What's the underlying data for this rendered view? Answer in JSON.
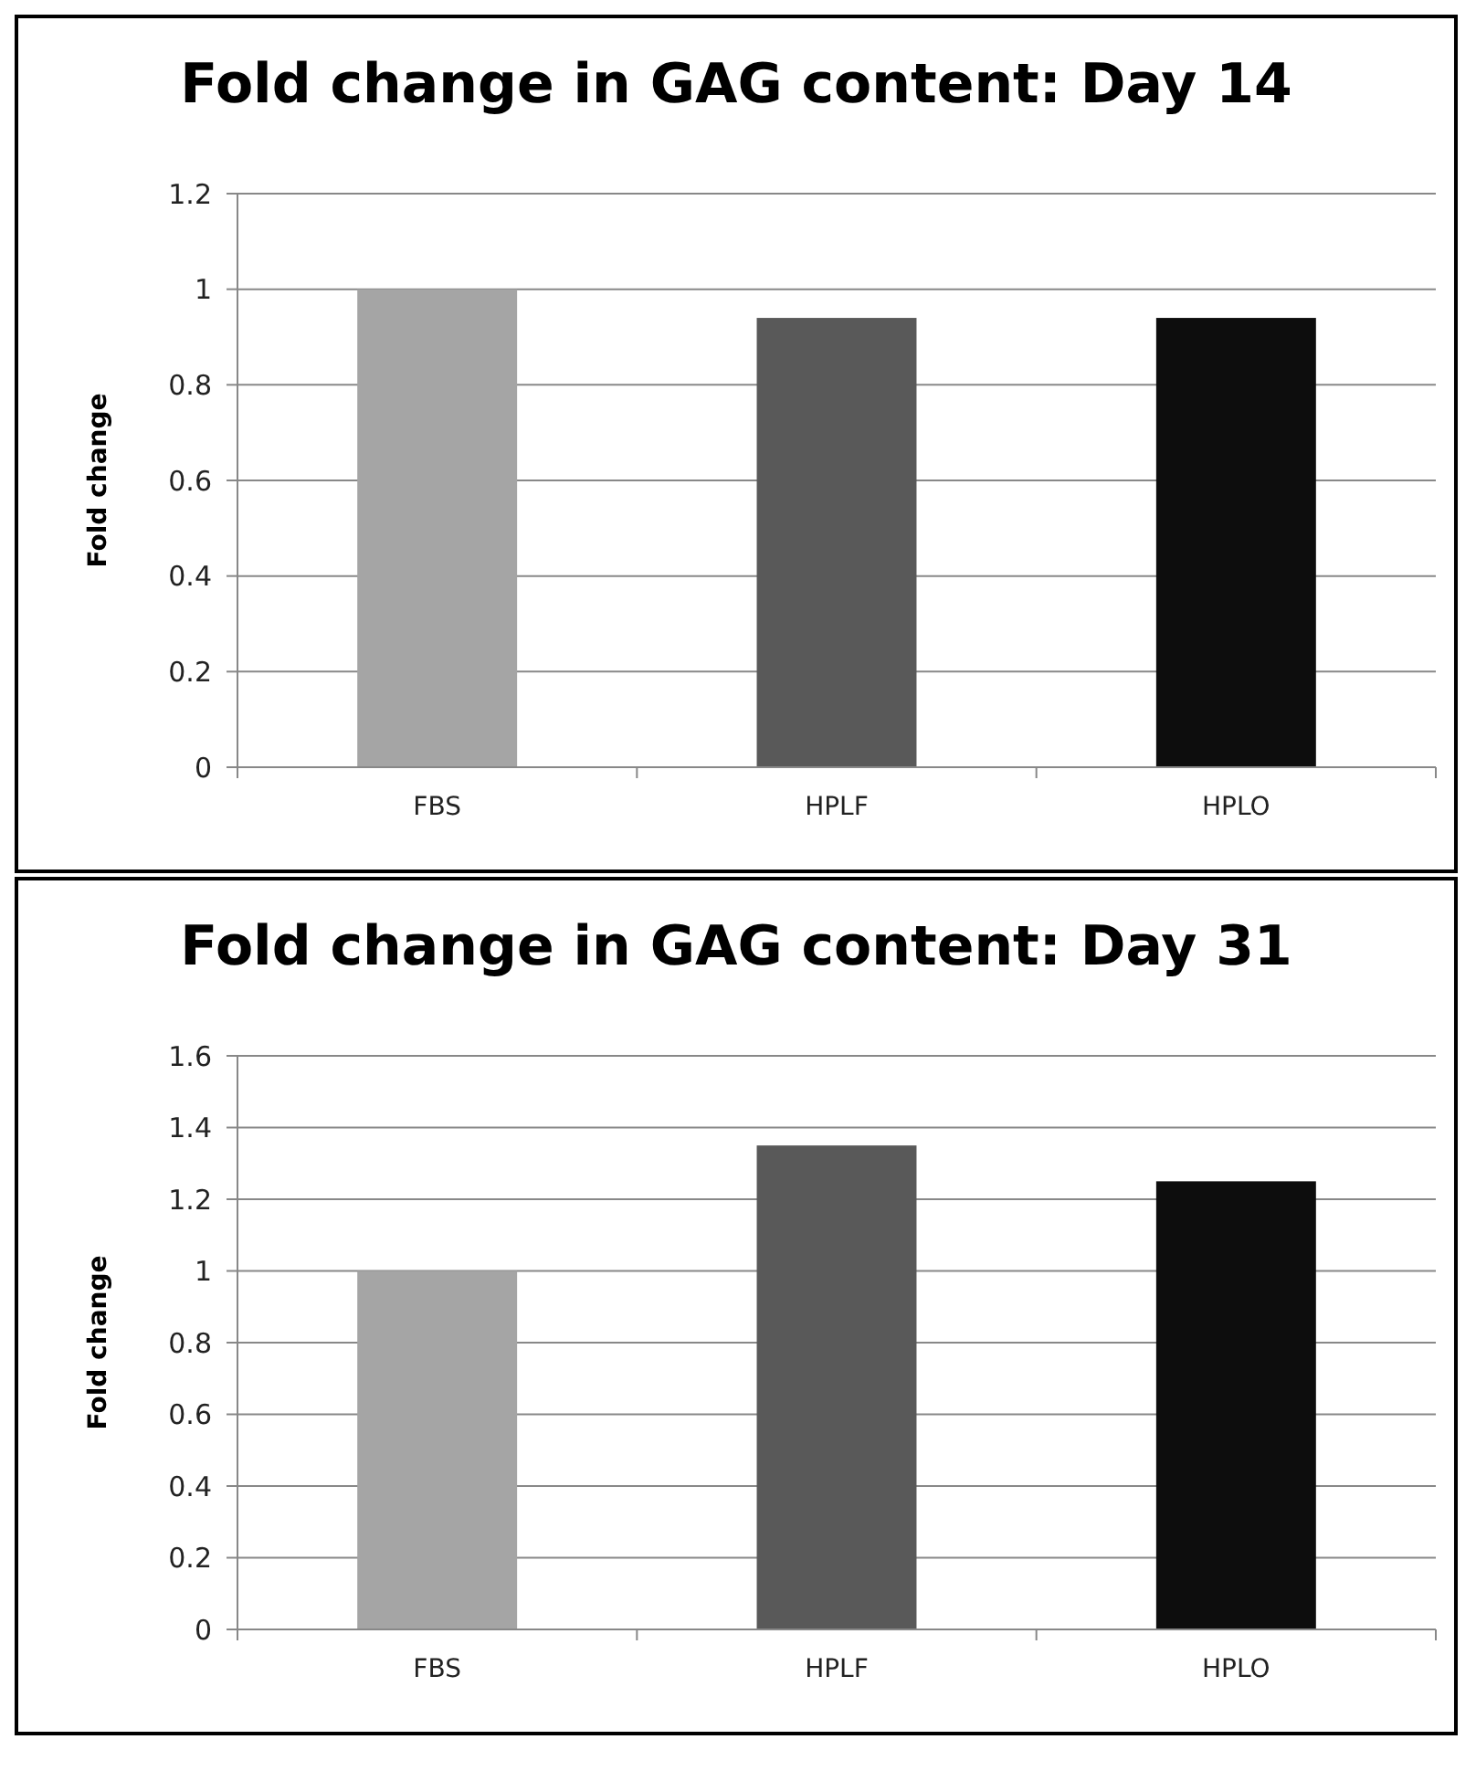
{
  "chart_data": [
    {
      "type": "bar",
      "title": "Fold change in GAG content: Day 14",
      "ylabel": "Fold change",
      "categories": [
        "FBS",
        "HPLF",
        "HPLO"
      ],
      "values": [
        1.0,
        0.94,
        0.94
      ],
      "colors": [
        "#a5a5a5",
        "#595959",
        "#0d0d0d"
      ],
      "ylim": [
        0,
        1.2
      ],
      "yticks": [
        0,
        0.2,
        0.4,
        0.6,
        0.8,
        1,
        1.2
      ],
      "grid": "y"
    },
    {
      "type": "bar",
      "title": "Fold change in GAG content: Day 31",
      "ylabel": "Fold change",
      "categories": [
        "FBS",
        "HPLF",
        "HPLO"
      ],
      "values": [
        1.0,
        1.35,
        1.25
      ],
      "colors": [
        "#a5a5a5",
        "#595959",
        "#0d0d0d"
      ],
      "ylim": [
        0,
        1.6
      ],
      "yticks": [
        0,
        0.2,
        0.4,
        0.6,
        0.8,
        1,
        1.2,
        1.4,
        1.6
      ],
      "grid": "y"
    }
  ]
}
